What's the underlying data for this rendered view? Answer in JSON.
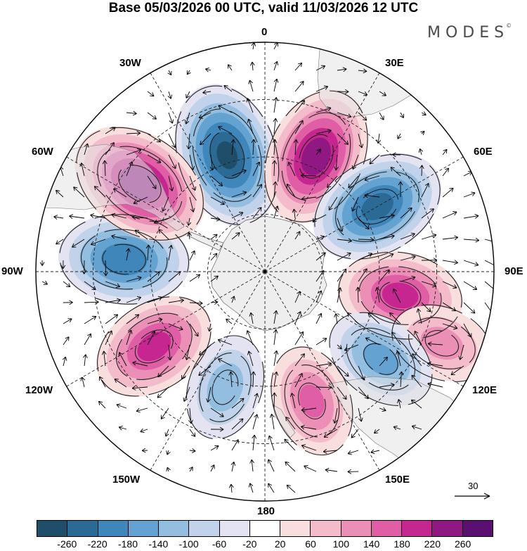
{
  "title": "Base 05/03/2026 00 UTC, valid 11/03/2026 12 UTC",
  "brand": "MODES",
  "brand_mark": "©",
  "longitude_labels": {
    "deg0": "0",
    "deg30e": "30E",
    "deg60e": "60E",
    "deg90e": "90E",
    "deg120e": "120E",
    "deg150e": "150E",
    "deg180": "180",
    "deg150w": "150W",
    "deg120w": "120W",
    "deg90w": "90W",
    "deg60w": "60W",
    "deg30w": "30W"
  },
  "reference_vector": {
    "label": "30",
    "value": 30
  },
  "colorbar": {
    "colors": [
      "#1f4e6b",
      "#2b6a95",
      "#3f86bb",
      "#64a3d1",
      "#94bee0",
      "#c0d3ea",
      "#e3e3f1",
      "#ffffff",
      "#f9dede",
      "#f4bccb",
      "#ec8fb7",
      "#df5ea6",
      "#c5268f",
      "#8f1882",
      "#5a1070"
    ],
    "ticks": [
      "-260",
      "-220",
      "-180",
      "-140",
      "-100",
      "-60",
      "-20",
      "20",
      "60",
      "100",
      "140",
      "180",
      "220",
      "260"
    ]
  },
  "anomalies": [
    {
      "name": "anomaly-negative-0",
      "lon": -18,
      "colat": 32,
      "value": -270,
      "sign": "neg"
    },
    {
      "name": "anomaly-positive-30e",
      "lon": 24,
      "colat": 33,
      "value": 250,
      "sign": "pos"
    },
    {
      "name": "anomaly-negative-60e",
      "lon": 60,
      "colat": 34,
      "value": -240,
      "sign": "neg"
    },
    {
      "name": "anomaly-positive-100e",
      "lon": 100,
      "colat": 36,
      "value": 200,
      "sign": "pos"
    },
    {
      "name": "anomaly-positive-110e",
      "lon": 112,
      "colat": 50,
      "value": 120,
      "sign": "pos"
    },
    {
      "name": "anomaly-negative-125e",
      "lon": 127,
      "colat": 38,
      "value": -160,
      "sign": "neg"
    },
    {
      "name": "anomaly-positive-160e",
      "lon": 160,
      "colat": 36,
      "value": 150,
      "sign": "pos"
    },
    {
      "name": "anomaly-negative-160w",
      "lon": -161,
      "colat": 32,
      "value": -130,
      "sign": "neg"
    },
    {
      "name": "anomaly-positive-125w",
      "lon": -124,
      "colat": 35,
      "value": 200,
      "sign": "pos"
    },
    {
      "name": "anomaly-negative-90w",
      "lon": -85,
      "colat": 37,
      "value": -220,
      "sign": "neg"
    },
    {
      "name": "anomaly-positive-55w",
      "lon": -55,
      "colat": 40,
      "value": 260,
      "sign": "pos"
    }
  ]
}
